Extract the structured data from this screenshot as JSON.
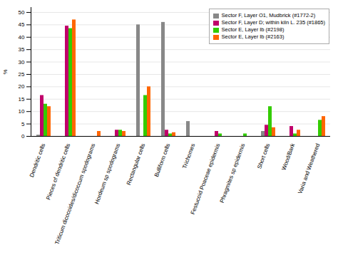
{
  "chart_data": {
    "type": "bar",
    "categories": [
      "Dendritic cells",
      "Pieces of dendritic cells",
      "Triticum dicocoides/dicoccum spodograms",
      "Hordeum sp spodograms",
      "Rectangular cells",
      "Bulliform cells",
      "Trichomes",
      "Festucoid Poaceae epidermis",
      "Phragmites sp epidermis",
      "Short cells",
      "Wood/Bark",
      "Varia and Weathered"
    ],
    "series": [
      {
        "name": "Sector F, Layer O1, Mudbrick (#1772-2)",
        "color": "#888888",
        "values": [
          0.5,
          0,
          0,
          0,
          45,
          46,
          6,
          0,
          0,
          2,
          0,
          0
        ]
      },
      {
        "name": "Sector F, Layer D; within kiln L. 235 (#1865)",
        "color": "#c0006a",
        "values": [
          16.5,
          44.5,
          0,
          2.5,
          0,
          2.5,
          0,
          2,
          0,
          4.5,
          4,
          0
        ]
      },
      {
        "name": "Sector E, Layer Ib (#2198)",
        "color": "#33cc00",
        "values": [
          13,
          43.5,
          0,
          2.5,
          16.5,
          1,
          0,
          1,
          1,
          12,
          1,
          6.5
        ]
      },
      {
        "name": "Sector E, Layer Ib (#2163)",
        "color": "#ff6600",
        "values": [
          12,
          47,
          2,
          2,
          20,
          1.5,
          0,
          0,
          0,
          3.5,
          2.5,
          8
        ]
      }
    ],
    "ylabel": "%",
    "ylim": [
      0,
      52
    ],
    "yticks": [
      0,
      5,
      10,
      15,
      20,
      25,
      30,
      35,
      40,
      45,
      50
    ],
    "grid": true,
    "legend": "upper right"
  }
}
